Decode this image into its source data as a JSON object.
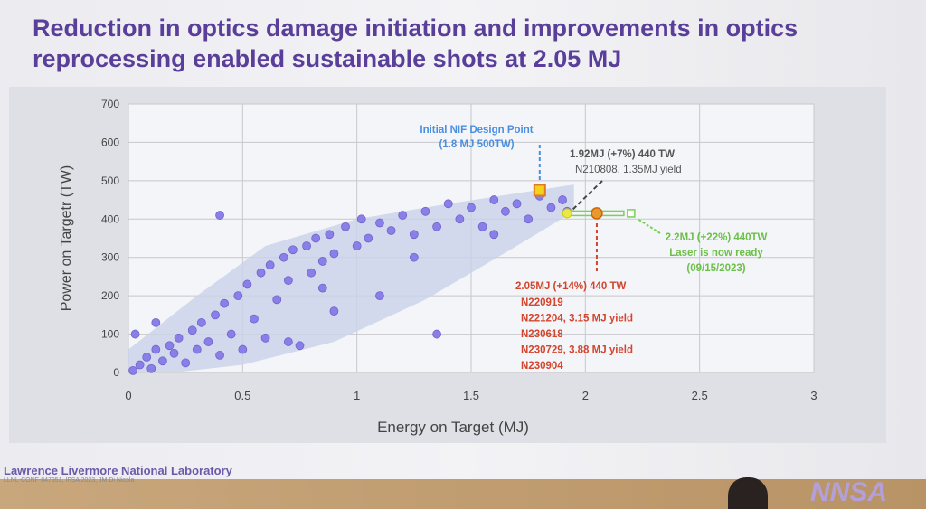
{
  "slide": {
    "title": "Reduction in optics damage initiation and improvements in optics reprocessing enabled sustainable shots at 2.05 MJ",
    "footer_org": "Lawrence Livermore National Laboratory",
    "footer_ref": "LLNL-CONF-847951, IFSA 2023, JM Di Nicola",
    "logo": "NNSA"
  },
  "chart_data": {
    "type": "scatter",
    "title": "",
    "xlabel": "Energy on Target (MJ)",
    "ylabel": "Power on Targetr (TW)",
    "xlim": [
      0,
      3
    ],
    "ylim": [
      0,
      700
    ],
    "xticks": [
      "0",
      "0.5",
      "1",
      "1.5",
      "2",
      "2.5",
      "3"
    ],
    "yticks": [
      "0",
      "100",
      "200",
      "300",
      "400",
      "500",
      "600",
      "700"
    ],
    "grid": true,
    "colors": {
      "shots": "#8a7ee8",
      "envelope": "#c9d2e8",
      "design": "#f2d21a",
      "design_border": "#e07a20",
      "shot192": "#e8e84a",
      "shot205": "#e89a30",
      "ready": "#7ccf5a",
      "blue_text": "#4a8ee0",
      "red_text": "#d2452e",
      "green_text": "#6cc04a",
      "gray_text": "#555555"
    },
    "envelope": [
      [
        0,
        0
      ],
      [
        0,
        60
      ],
      [
        0.3,
        200
      ],
      [
        0.6,
        330
      ],
      [
        1.0,
        400
      ],
      [
        1.4,
        440
      ],
      [
        1.95,
        490
      ],
      [
        1.95,
        420
      ],
      [
        1.7,
        330
      ],
      [
        1.3,
        190
      ],
      [
        0.9,
        80
      ],
      [
        0.5,
        20
      ],
      [
        0.2,
        0
      ]
    ],
    "series": [
      {
        "values": [
          [
            0.02,
            5
          ],
          [
            0.05,
            20
          ],
          [
            0.08,
            40
          ],
          [
            0.1,
            10
          ],
          [
            0.12,
            60
          ],
          [
            0.15,
            30
          ],
          [
            0.18,
            70
          ],
          [
            0.2,
            50
          ],
          [
            0.22,
            90
          ],
          [
            0.25,
            25
          ],
          [
            0.28,
            110
          ],
          [
            0.3,
            60
          ],
          [
            0.32,
            130
          ],
          [
            0.35,
            80
          ],
          [
            0.38,
            150
          ],
          [
            0.4,
            45
          ],
          [
            0.42,
            180
          ],
          [
            0.45,
            100
          ],
          [
            0.48,
            200
          ],
          [
            0.5,
            60
          ],
          [
            0.52,
            230
          ],
          [
            0.55,
            140
          ],
          [
            0.58,
            260
          ],
          [
            0.6,
            90
          ],
          [
            0.62,
            280
          ],
          [
            0.65,
            190
          ],
          [
            0.68,
            300
          ],
          [
            0.7,
            240
          ],
          [
            0.72,
            320
          ],
          [
            0.75,
            70
          ],
          [
            0.78,
            330
          ],
          [
            0.8,
            260
          ],
          [
            0.82,
            350
          ],
          [
            0.85,
            290
          ],
          [
            0.88,
            360
          ],
          [
            0.9,
            310
          ],
          [
            0.95,
            380
          ],
          [
            1.0,
            330
          ],
          [
            1.02,
            400
          ],
          [
            1.05,
            350
          ],
          [
            1.1,
            390
          ],
          [
            1.15,
            370
          ],
          [
            1.2,
            410
          ],
          [
            1.25,
            360
          ],
          [
            1.3,
            420
          ],
          [
            1.35,
            380
          ],
          [
            1.4,
            440
          ],
          [
            1.45,
            400
          ],
          [
            1.5,
            430
          ],
          [
            1.55,
            380
          ],
          [
            1.6,
            450
          ],
          [
            1.65,
            420
          ],
          [
            1.7,
            440
          ],
          [
            1.75,
            400
          ],
          [
            1.8,
            460
          ],
          [
            1.85,
            430
          ],
          [
            1.9,
            450
          ],
          [
            1.92,
            420
          ],
          [
            0.4,
            410
          ],
          [
            0.9,
            160
          ],
          [
            1.1,
            200
          ],
          [
            1.35,
            100
          ],
          [
            0.7,
            80
          ],
          [
            0.12,
            130
          ],
          [
            0.03,
            100
          ],
          [
            1.6,
            360
          ],
          [
            1.25,
            300
          ],
          [
            0.85,
            220
          ]
        ]
      }
    ],
    "highlights": [
      {
        "label": "Initial NIF Design Point",
        "sub": "(1.8 MJ 500TW)",
        "x": 1.8,
        "y": 475,
        "marker": "square"
      },
      {
        "label": "1.92MJ (+7%) 440 TW",
        "sub": "N210808, 1.35MJ yield",
        "x": 1.92,
        "y": 415,
        "marker": "circle"
      },
      {
        "label": "2.05MJ (+14%) 440 TW",
        "lines": [
          "N220919",
          "N221204, 3.15 MJ yield",
          "N230618",
          "N230729, 3.88 MJ yield",
          "N230904"
        ],
        "x": 2.05,
        "y": 415,
        "marker": "circle"
      },
      {
        "label": "2.2MJ (+22%) 440TW",
        "lines": [
          "Laser is now ready",
          "(09/15/2023)"
        ],
        "x": 2.2,
        "y": 415,
        "marker": "open-square"
      }
    ]
  }
}
